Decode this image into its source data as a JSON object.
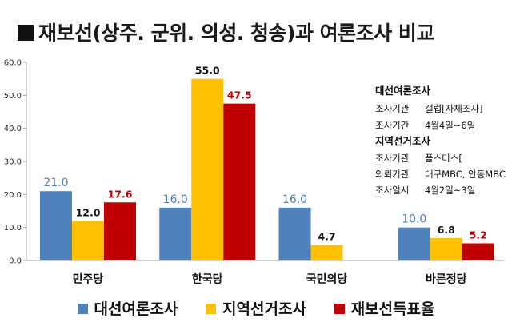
{
  "title": "재보선(상주. 군위. 의성. 청송)과 여론조사 비교",
  "chart_data": {
    "type": "bar",
    "categories": [
      "민주당",
      "한국당",
      "국민의당",
      "바른정당"
    ],
    "ylim": [
      0,
      60
    ],
    "yticks": [
      "0.0",
      "10.0",
      "20.0",
      "30.0",
      "40.0",
      "50.0",
      "60.0"
    ],
    "grid": false,
    "legend_position": "bottom",
    "series": [
      {
        "name": "대선여론조사",
        "color": "#4f81bd",
        "label_color": "#4f81bd",
        "values": [
          21.0,
          16.0,
          16.0,
          10.0
        ],
        "labels": [
          "21.0",
          "16.0",
          "16.0",
          "10.0"
        ]
      },
      {
        "name": "지역선거조사",
        "color": "#ffc000",
        "label_color": "#111111",
        "values": [
          12.0,
          55.0,
          4.7,
          6.8
        ],
        "labels": [
          "12.0",
          "55.0",
          "4.7",
          "6.8"
        ]
      },
      {
        "name": "재보선득표율",
        "color": "#c00000",
        "label_color": "#c00000",
        "values": [
          17.6,
          47.5,
          null,
          5.2
        ],
        "labels": [
          "17.6",
          "47.5",
          "",
          "5.2"
        ]
      }
    ]
  },
  "info": {
    "block1_title": "대선여론조사",
    "block1_rows": [
      {
        "k": "조사기관",
        "v": "갤럽[자체조사]"
      },
      {
        "k": "조사기간",
        "v": "4월4일~6일"
      }
    ],
    "block2_title": "지역선거조사",
    "block2_rows": [
      {
        "k": "조사기관",
        "v": "폴스미스["
      },
      {
        "k": "의뢰기관",
        "v": "대구MBC, 안동MBC"
      },
      {
        "k": "조사일시",
        "v": "4월2일~3일"
      }
    ]
  }
}
